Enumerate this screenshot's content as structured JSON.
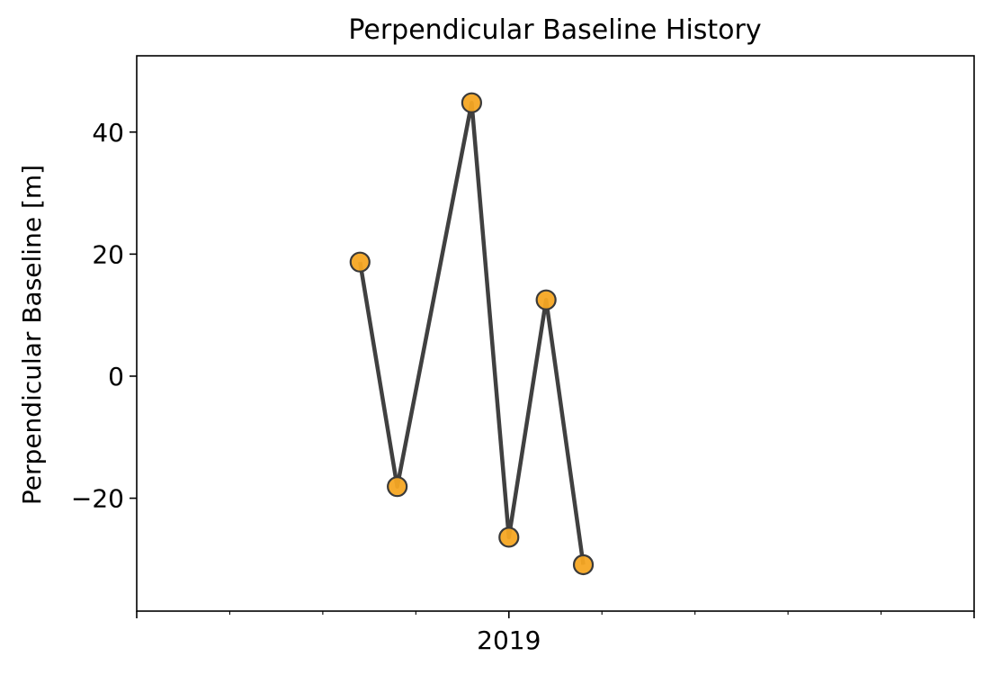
{
  "chart_data": {
    "type": "line",
    "title": "Perpendicular Baseline History",
    "xlabel": "",
    "ylabel": "Perpendicular Baseline [m]",
    "ylim": [
      -38.5,
      52.5
    ],
    "y_ticks": [
      -20,
      0,
      20,
      40
    ],
    "y_tick_labels": [
      "−20",
      "0",
      "20",
      "40"
    ],
    "x_tick_labels": [
      "2019"
    ],
    "grid": false,
    "line_color": "#404040",
    "marker_color": "#f5a623",
    "marker_edge_color": "#3a3a3a",
    "series": [
      {
        "x_index": [
          0.4,
          0.8,
          1.6,
          2.0,
          2.4,
          2.8
        ],
        "values": [
          18.7,
          -18.1,
          44.8,
          -26.4,
          12.5,
          -30.9
        ]
      }
    ]
  }
}
